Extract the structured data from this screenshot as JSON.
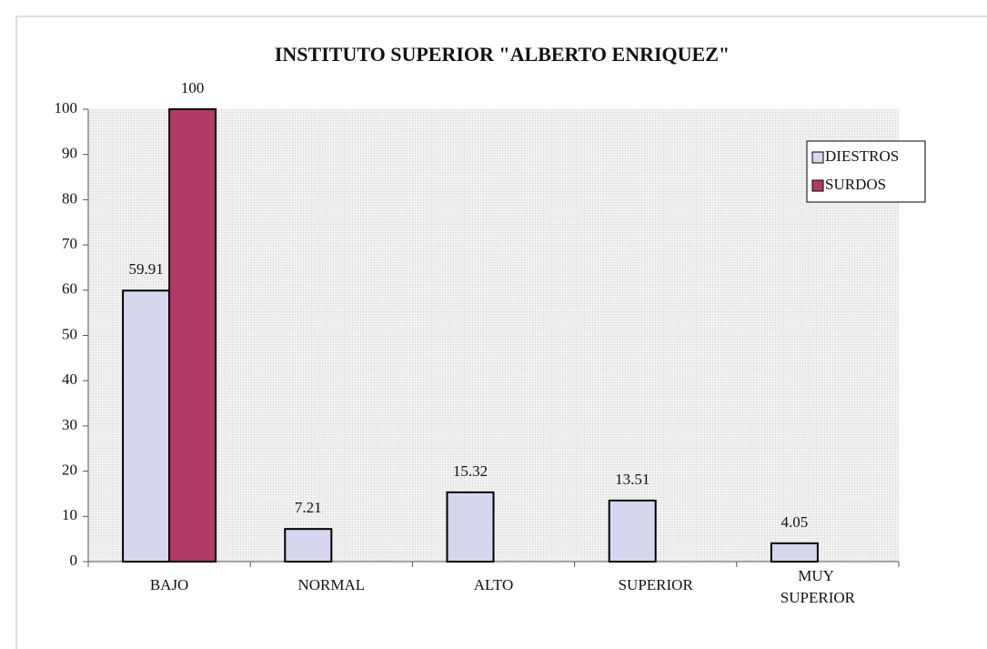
{
  "chart_data": {
    "type": "bar",
    "title": "INSTITUTO SUPERIOR \"ALBERTO ENRIQUEZ\"",
    "categories": [
      "BAJO",
      "NORMAL",
      "ALTO",
      "SUPERIOR",
      "MUY SUPERIOR"
    ],
    "series": [
      {
        "name": "DIESTROS",
        "color": "#d6d6ee",
        "values": [
          59.91,
          7.21,
          15.32,
          13.51,
          4.05
        ]
      },
      {
        "name": "SURDOS",
        "color": "#b23a68",
        "values": [
          100,
          null,
          null,
          null,
          null
        ]
      }
    ],
    "ylim": [
      0,
      100
    ],
    "yticks": [
      0,
      10,
      20,
      30,
      40,
      50,
      60,
      70,
      80,
      90,
      100
    ],
    "legend": "upper right"
  }
}
